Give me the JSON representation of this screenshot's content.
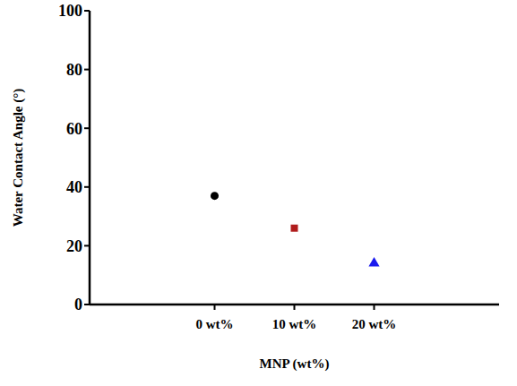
{
  "chart_data": {
    "type": "scatter",
    "categories": [
      "0 wt%",
      "10 wt%",
      "20 wt%"
    ],
    "series": [
      {
        "color": "#000000",
        "marker": "circle",
        "values": [
          37,
          null,
          null
        ]
      },
      {
        "color": "#b01c1c",
        "marker": "square",
        "values": [
          null,
          26,
          null
        ]
      },
      {
        "color": "#1a1aee",
        "marker": "triangle",
        "values": [
          null,
          null,
          14
        ]
      }
    ],
    "xlabel": "MNP (wt%)",
    "ylabel": "Water Contact Angle (°)",
    "ylim": [
      0,
      100
    ],
    "yticks": [
      0,
      20,
      40,
      60,
      80,
      100
    ],
    "grid": false
  }
}
